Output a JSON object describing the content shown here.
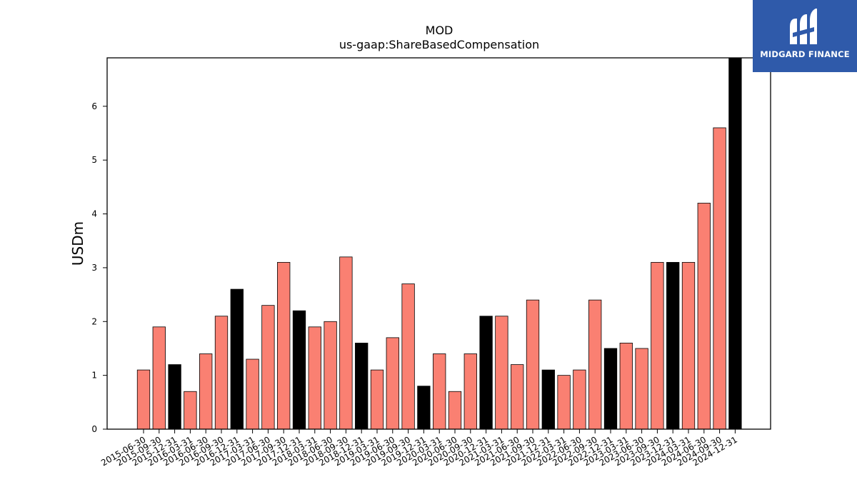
{
  "brand": {
    "name": "MIDGARD FINANCE",
    "background": "#2f5aaa"
  },
  "chart_data": {
    "type": "bar",
    "title": "MOD",
    "subtitle": "us-gaap:ShareBasedCompensation",
    "xlabel": "",
    "ylabel": "USDm",
    "ylim": [
      0,
      6.9
    ],
    "yticks": [
      0,
      1,
      2,
      3,
      4,
      5,
      6
    ],
    "grid": false,
    "colors": {
      "quarter": "#fa8072",
      "year_end": "#000000",
      "edge": "#000000"
    },
    "categories": [
      "2015-06-30",
      "2015-09-30",
      "2015-12-31",
      "2016-03-31",
      "2016-06-30",
      "2016-09-30",
      "2016-12-31",
      "2017-03-31",
      "2017-06-30",
      "2017-09-30",
      "2017-12-31",
      "2018-03-31",
      "2018-06-30",
      "2018-09-30",
      "2018-12-31",
      "2019-03-31",
      "2019-06-30",
      "2019-09-30",
      "2019-12-31",
      "2020-03-31",
      "2020-06-30",
      "2020-09-30",
      "2020-12-31",
      "2021-03-31",
      "2021-06-30",
      "2021-09-30",
      "2021-12-31",
      "2022-03-31",
      "2022-06-30",
      "2022-09-30",
      "2022-12-31",
      "2023-03-31",
      "2023-06-30",
      "2023-09-30",
      "2023-12-31",
      "2024-03-31",
      "2024-06-30",
      "2024-09-30",
      "2024-12-31"
    ],
    "values": [
      1.1,
      1.9,
      1.2,
      0.7,
      1.4,
      2.1,
      2.6,
      1.3,
      2.3,
      3.1,
      2.2,
      1.9,
      2.0,
      3.2,
      1.6,
      1.1,
      1.7,
      2.7,
      0.8,
      1.4,
      0.7,
      1.4,
      2.1,
      2.1,
      1.2,
      2.4,
      1.1,
      1.0,
      1.1,
      2.4,
      1.5,
      1.6,
      1.5,
      3.1,
      3.1,
      3.1,
      4.2,
      5.6,
      6.9
    ]
  }
}
